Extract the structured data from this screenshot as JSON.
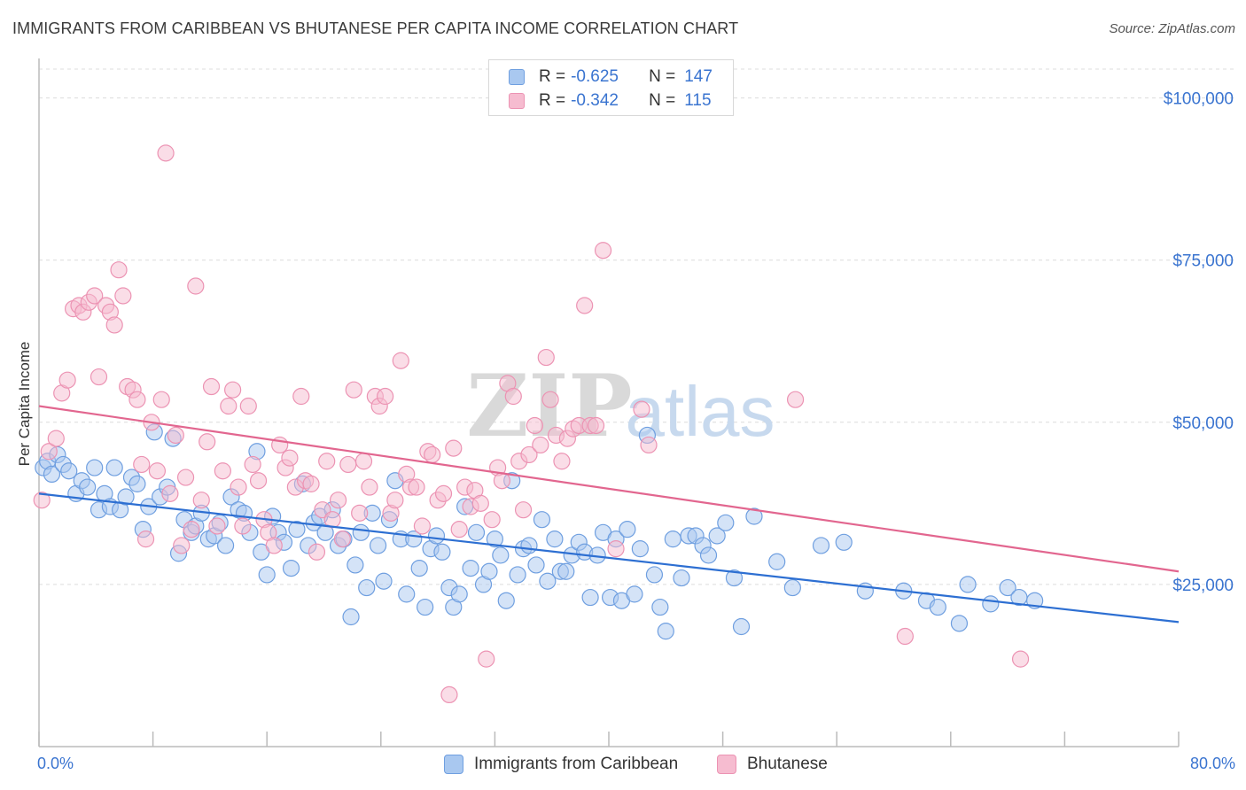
{
  "header": {
    "title": "IMMIGRANTS FROM CARIBBEAN VS BHUTANESE PER CAPITA INCOME CORRELATION CHART",
    "source": "Source: ZipAtlas.com"
  },
  "legend_top": {
    "rows": [
      {
        "r_label": "R =",
        "r_value": "-0.625",
        "n_label": "N =",
        "n_value": "147"
      },
      {
        "r_label": "R =",
        "r_value": "-0.342",
        "n_label": "N =",
        "n_value": "115"
      }
    ]
  },
  "legend_bottom": {
    "items": [
      {
        "label": "Immigrants from Caribbean"
      },
      {
        "label": "Bhutanese"
      }
    ]
  },
  "colors": {
    "caribbean_fill": "#a9c8f0",
    "caribbean_stroke": "#6f9fe0",
    "caribbean_line": "#2d6fd2",
    "bhutanese_fill": "#f6bcd0",
    "bhutanese_stroke": "#ec93b3",
    "bhutanese_line": "#e2668f",
    "axis_text": "#3a74d0"
  },
  "watermark": {
    "zip": "ZIP",
    "atlas": "atlas"
  },
  "chart_data": {
    "type": "scatter",
    "title": "IMMIGRANTS FROM CARIBBEAN VS BHUTANESE PER CAPITA INCOME CORRELATION CHART",
    "xlabel": "",
    "ylabel": "Per Capita Income",
    "xlim": [
      0,
      80
    ],
    "ylim": [
      0,
      105000
    ],
    "x_tick_labels": {
      "min": "0.0%",
      "max": "80.0%"
    },
    "y_ticks": [
      {
        "value": 25000,
        "label": "$25,000"
      },
      {
        "value": 50000,
        "label": "$50,000"
      },
      {
        "value": 75000,
        "label": "$75,000"
      },
      {
        "value": 100000,
        "label": "$100,000"
      }
    ],
    "grid": true,
    "legend_position": "top-center",
    "series": [
      {
        "name": "Immigrants from Caribbean",
        "r": -0.625,
        "n": 147,
        "trend": {
          "x": [
            0,
            80
          ],
          "y": [
            39000,
            19200
          ]
        },
        "points": [
          [
            0.3,
            43000
          ],
          [
            0.6,
            44000
          ],
          [
            0.9,
            42000
          ],
          [
            1.3,
            45000
          ],
          [
            1.7,
            43500
          ],
          [
            2.1,
            42500
          ],
          [
            2.6,
            39000
          ],
          [
            3.0,
            41000
          ],
          [
            3.4,
            40000
          ],
          [
            3.9,
            43000
          ],
          [
            4.2,
            36500
          ],
          [
            4.6,
            39000
          ],
          [
            5.0,
            37000
          ],
          [
            5.3,
            43000
          ],
          [
            5.7,
            36500
          ],
          [
            6.1,
            38500
          ],
          [
            6.5,
            41500
          ],
          [
            6.9,
            40500
          ],
          [
            7.3,
            33500
          ],
          [
            7.7,
            37000
          ],
          [
            8.1,
            48500
          ],
          [
            8.5,
            38500
          ],
          [
            9.0,
            40000
          ],
          [
            9.4,
            47500
          ],
          [
            9.8,
            29800
          ],
          [
            10.2,
            35000
          ],
          [
            10.7,
            33000
          ],
          [
            11.0,
            34000
          ],
          [
            11.4,
            36000
          ],
          [
            11.9,
            32000
          ],
          [
            12.3,
            32500
          ],
          [
            12.7,
            34500
          ],
          [
            13.1,
            31000
          ],
          [
            13.5,
            38500
          ],
          [
            14.0,
            36500
          ],
          [
            14.4,
            36000
          ],
          [
            14.8,
            33000
          ],
          [
            15.3,
            45500
          ],
          [
            15.6,
            30000
          ],
          [
            16.0,
            26500
          ],
          [
            16.4,
            35500
          ],
          [
            16.8,
            33000
          ],
          [
            17.2,
            31500
          ],
          [
            17.7,
            27500
          ],
          [
            18.1,
            33500
          ],
          [
            18.5,
            40500
          ],
          [
            18.9,
            31000
          ],
          [
            19.3,
            34500
          ],
          [
            19.7,
            35500
          ],
          [
            20.1,
            33000
          ],
          [
            20.6,
            36500
          ],
          [
            21.0,
            31000
          ],
          [
            21.4,
            32000
          ],
          [
            21.9,
            20000
          ],
          [
            22.2,
            28000
          ],
          [
            22.6,
            33000
          ],
          [
            23.0,
            24500
          ],
          [
            23.4,
            36000
          ],
          [
            23.8,
            31000
          ],
          [
            24.2,
            25500
          ],
          [
            24.6,
            35000
          ],
          [
            25.0,
            41000
          ],
          [
            25.4,
            32000
          ],
          [
            25.8,
            23500
          ],
          [
            26.3,
            32000
          ],
          [
            26.7,
            27500
          ],
          [
            27.1,
            21500
          ],
          [
            27.5,
            30500
          ],
          [
            27.9,
            32500
          ],
          [
            28.3,
            30000
          ],
          [
            28.8,
            24500
          ],
          [
            29.1,
            21500
          ],
          [
            29.5,
            23500
          ],
          [
            29.9,
            37000
          ],
          [
            30.3,
            27500
          ],
          [
            30.7,
            33000
          ],
          [
            31.2,
            25000
          ],
          [
            31.6,
            27000
          ],
          [
            32.0,
            32000
          ],
          [
            32.4,
            29500
          ],
          [
            32.8,
            22500
          ],
          [
            33.2,
            41000
          ],
          [
            33.6,
            26500
          ],
          [
            34.0,
            30500
          ],
          [
            34.4,
            31000
          ],
          [
            34.9,
            28000
          ],
          [
            35.3,
            35000
          ],
          [
            35.7,
            25500
          ],
          [
            36.2,
            32000
          ],
          [
            36.6,
            27000
          ],
          [
            37.0,
            27000
          ],
          [
            37.4,
            29500
          ],
          [
            37.9,
            31500
          ],
          [
            38.3,
            30000
          ],
          [
            38.7,
            23000
          ],
          [
            39.2,
            29500
          ],
          [
            39.6,
            33000
          ],
          [
            40.1,
            23000
          ],
          [
            40.5,
            32000
          ],
          [
            40.9,
            22500
          ],
          [
            41.3,
            33500
          ],
          [
            41.8,
            23500
          ],
          [
            42.2,
            30500
          ],
          [
            42.7,
            48000
          ],
          [
            43.2,
            26500
          ],
          [
            43.6,
            21500
          ],
          [
            44.0,
            17800
          ],
          [
            44.5,
            32000
          ],
          [
            45.1,
            26000
          ],
          [
            45.6,
            32500
          ],
          [
            46.1,
            32500
          ],
          [
            46.6,
            31000
          ],
          [
            47.0,
            29500
          ],
          [
            47.6,
            32500
          ],
          [
            48.2,
            34500
          ],
          [
            48.8,
            26000
          ],
          [
            49.3,
            18500
          ],
          [
            50.2,
            35500
          ],
          [
            51.8,
            28500
          ],
          [
            52.9,
            24500
          ],
          [
            54.9,
            31000
          ],
          [
            56.5,
            31500
          ],
          [
            58.0,
            24000
          ],
          [
            60.7,
            24000
          ],
          [
            62.3,
            22500
          ],
          [
            63.1,
            21500
          ],
          [
            64.6,
            19000
          ],
          [
            65.2,
            25000
          ],
          [
            66.8,
            22000
          ],
          [
            68.0,
            24500
          ],
          [
            68.8,
            23000
          ],
          [
            69.9,
            22500
          ]
        ]
      },
      {
        "name": "Bhutanese",
        "r": -0.342,
        "n": 115,
        "trend": {
          "x": [
            0,
            80
          ],
          "y": [
            52500,
            27000
          ]
        },
        "points": [
          [
            0.2,
            38000
          ],
          [
            0.7,
            45500
          ],
          [
            1.2,
            47500
          ],
          [
            1.6,
            54500
          ],
          [
            2.0,
            56500
          ],
          [
            2.4,
            67500
          ],
          [
            2.8,
            68000
          ],
          [
            3.1,
            67000
          ],
          [
            3.5,
            68500
          ],
          [
            3.9,
            69500
          ],
          [
            4.2,
            57000
          ],
          [
            4.7,
            68000
          ],
          [
            5.0,
            67000
          ],
          [
            5.3,
            65000
          ],
          [
            5.6,
            73500
          ],
          [
            5.9,
            69500
          ],
          [
            6.2,
            55500
          ],
          [
            6.6,
            55000
          ],
          [
            6.9,
            53500
          ],
          [
            7.2,
            43500
          ],
          [
            7.5,
            32000
          ],
          [
            7.9,
            50000
          ],
          [
            8.3,
            42500
          ],
          [
            8.6,
            53500
          ],
          [
            8.9,
            91500
          ],
          [
            9.2,
            39000
          ],
          [
            9.6,
            48000
          ],
          [
            10.0,
            31000
          ],
          [
            10.3,
            41500
          ],
          [
            10.7,
            33500
          ],
          [
            11.0,
            71000
          ],
          [
            11.4,
            38000
          ],
          [
            11.8,
            47000
          ],
          [
            12.1,
            55500
          ],
          [
            12.5,
            34000
          ],
          [
            12.9,
            42500
          ],
          [
            13.3,
            52500
          ],
          [
            13.6,
            55000
          ],
          [
            14.0,
            40000
          ],
          [
            14.3,
            34000
          ],
          [
            14.7,
            52500
          ],
          [
            15.0,
            43500
          ],
          [
            15.4,
            41000
          ],
          [
            15.8,
            35000
          ],
          [
            16.1,
            33000
          ],
          [
            16.5,
            31000
          ],
          [
            16.9,
            46500
          ],
          [
            17.3,
            43000
          ],
          [
            17.6,
            44500
          ],
          [
            18.0,
            40000
          ],
          [
            18.4,
            54000
          ],
          [
            18.7,
            41000
          ],
          [
            19.1,
            40500
          ],
          [
            19.5,
            30000
          ],
          [
            19.9,
            36500
          ],
          [
            20.2,
            44000
          ],
          [
            20.6,
            35000
          ],
          [
            21.0,
            38000
          ],
          [
            21.3,
            32000
          ],
          [
            21.7,
            43500
          ],
          [
            22.1,
            55000
          ],
          [
            22.5,
            36000
          ],
          [
            22.8,
            44000
          ],
          [
            23.2,
            40000
          ],
          [
            23.6,
            54000
          ],
          [
            23.9,
            52500
          ],
          [
            24.3,
            54000
          ],
          [
            24.7,
            36000
          ],
          [
            25.0,
            38000
          ],
          [
            25.4,
            59500
          ],
          [
            25.8,
            42000
          ],
          [
            26.1,
            40000
          ],
          [
            26.5,
            40000
          ],
          [
            26.9,
            34000
          ],
          [
            27.3,
            45500
          ],
          [
            27.6,
            45000
          ],
          [
            28.0,
            38000
          ],
          [
            28.4,
            39000
          ],
          [
            28.8,
            8000
          ],
          [
            29.1,
            46000
          ],
          [
            29.5,
            33500
          ],
          [
            29.9,
            40000
          ],
          [
            30.3,
            37000
          ],
          [
            30.6,
            39500
          ],
          [
            31.0,
            37500
          ],
          [
            31.4,
            13500
          ],
          [
            31.8,
            35000
          ],
          [
            32.2,
            43000
          ],
          [
            32.5,
            41000
          ],
          [
            32.9,
            56000
          ],
          [
            33.3,
            54000
          ],
          [
            33.7,
            44000
          ],
          [
            34.0,
            36500
          ],
          [
            34.4,
            45000
          ],
          [
            34.8,
            49500
          ],
          [
            35.2,
            46500
          ],
          [
            35.6,
            60000
          ],
          [
            35.9,
            53500
          ],
          [
            36.3,
            48000
          ],
          [
            36.7,
            44000
          ],
          [
            37.1,
            47500
          ],
          [
            37.5,
            49000
          ],
          [
            37.9,
            49500
          ],
          [
            38.3,
            68000
          ],
          [
            38.7,
            49500
          ],
          [
            39.1,
            49500
          ],
          [
            39.6,
            76500
          ],
          [
            40.5,
            30500
          ],
          [
            42.3,
            52000
          ],
          [
            42.8,
            46500
          ],
          [
            53.1,
            53500
          ],
          [
            60.8,
            17000
          ],
          [
            68.9,
            13500
          ]
        ]
      }
    ]
  }
}
